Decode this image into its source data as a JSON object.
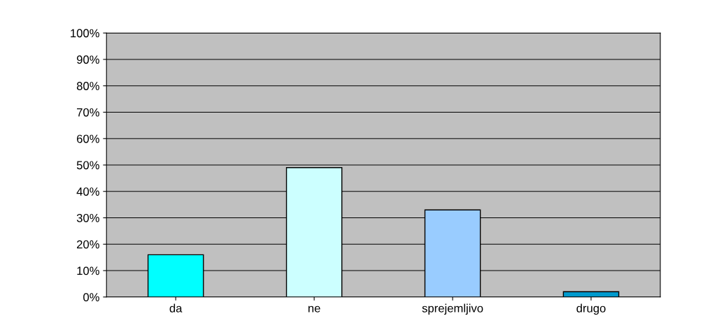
{
  "chart_data": {
    "type": "bar",
    "categories": [
      "da",
      "ne",
      "sprejemljivo",
      "drugo"
    ],
    "values": [
      16,
      49,
      33,
      2
    ],
    "colors": [
      "#00ffff",
      "#ccffff",
      "#99ccff",
      "#0099cc"
    ],
    "ylim": [
      0,
      100
    ],
    "yticks": [
      {
        "value": 0,
        "label": "0%"
      },
      {
        "value": 10,
        "label": "10%"
      },
      {
        "value": 20,
        "label": "20%"
      },
      {
        "value": 30,
        "label": "30%"
      },
      {
        "value": 40,
        "label": "40%"
      },
      {
        "value": 50,
        "label": "50%"
      },
      {
        "value": 60,
        "label": "60%"
      },
      {
        "value": 70,
        "label": "70%"
      },
      {
        "value": 80,
        "label": "80%"
      },
      {
        "value": 90,
        "label": "90%"
      },
      {
        "value": 100,
        "label": "100%"
      }
    ],
    "grid": "y"
  }
}
